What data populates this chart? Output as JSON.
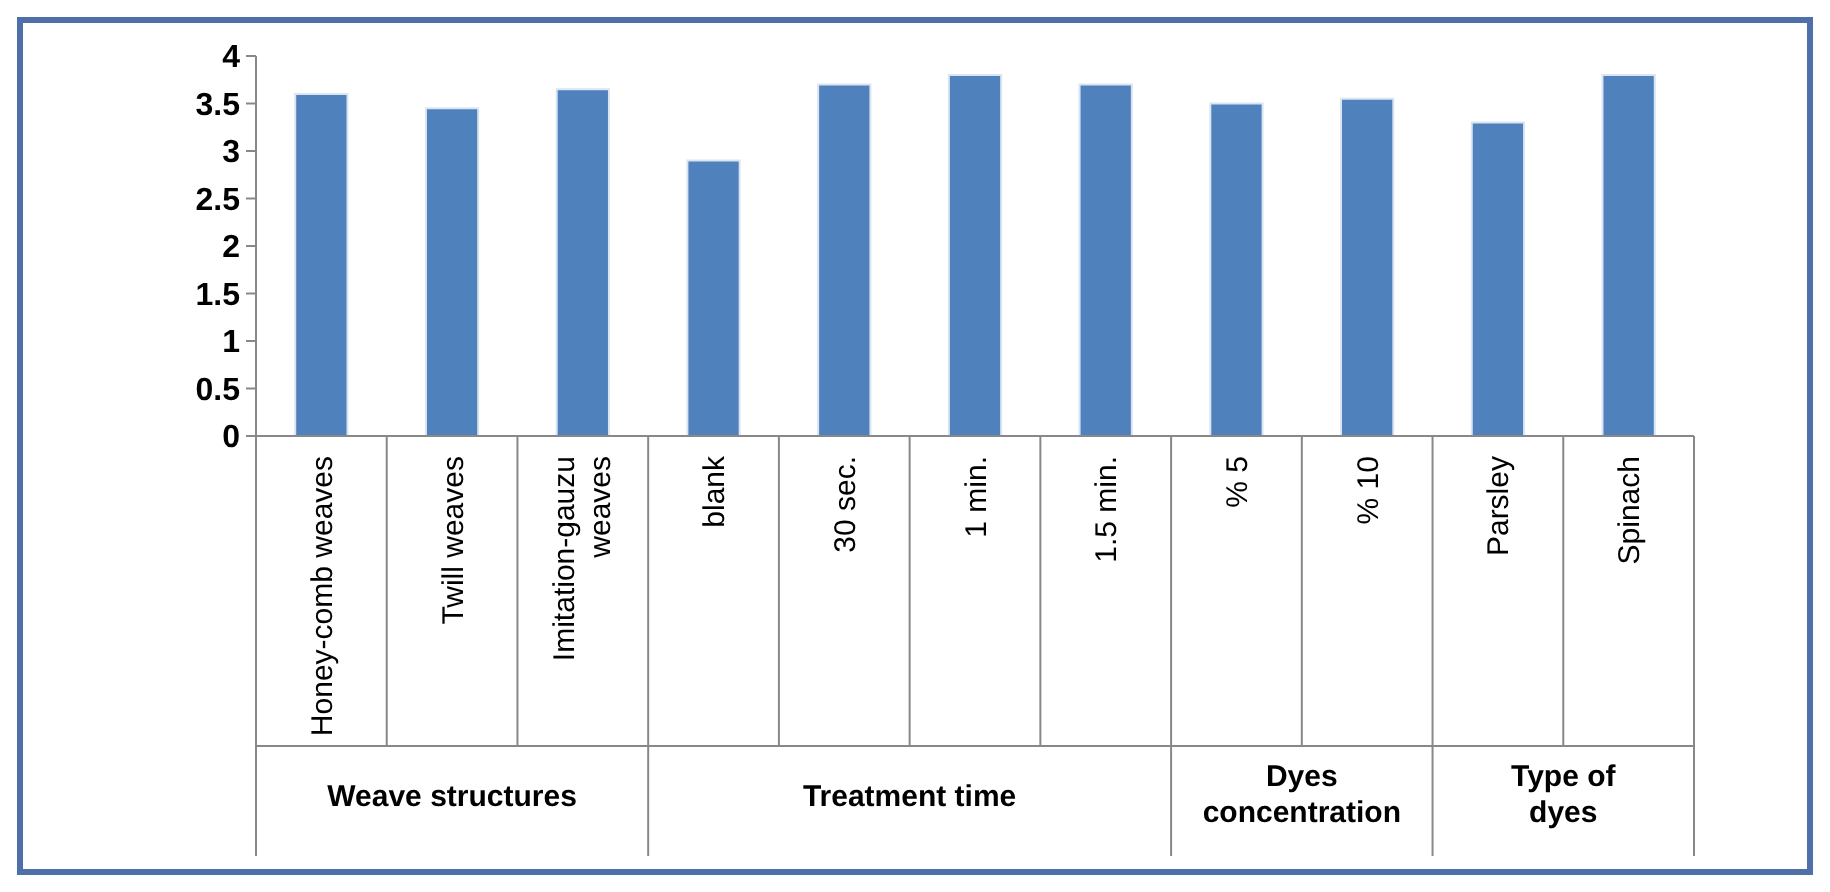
{
  "chart_data": {
    "type": "bar",
    "categories": [
      "Honey-comb weaves",
      "Twill weaves",
      "Imitation-gauzu weaves",
      "blank",
      "30 sec.",
      "1 min.",
      "1.5 min.",
      "% 5",
      "% 10",
      "Parsley",
      "Spinach"
    ],
    "values": [
      3.6,
      3.45,
      3.65,
      2.9,
      3.7,
      3.8,
      3.7,
      3.5,
      3.55,
      3.3,
      3.8
    ],
    "color": "#4f81bd",
    "ylim": [
      0,
      4
    ],
    "yticks": [
      0,
      0.5,
      1,
      1.5,
      2,
      2.5,
      3,
      3.5,
      4
    ],
    "annotations": [
      "Weave structures",
      "Treatment time",
      "Dyes concentration",
      "Type of dyes"
    ]
  }
}
